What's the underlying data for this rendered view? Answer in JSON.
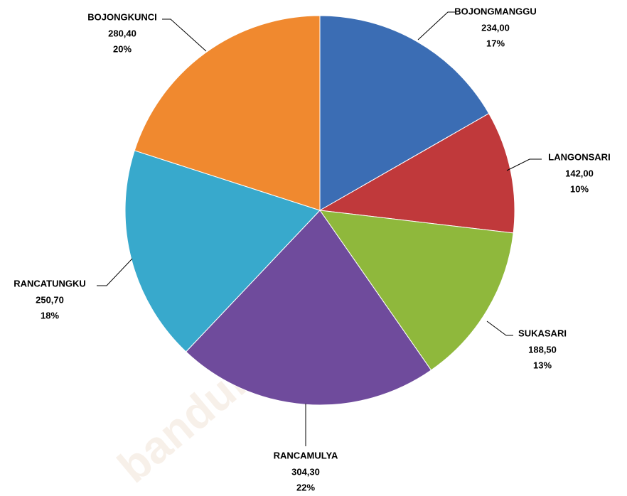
{
  "chart_data": {
    "type": "pie",
    "categories": [
      "BOJONGMANGGU",
      "LANGONSARI",
      "SUKASARI",
      "RANCAMULYA",
      "RANCATUNGKU",
      "BOJONGKUNCI"
    ],
    "values": [
      234.0,
      142.0,
      188.5,
      304.3,
      250.7,
      280.4
    ],
    "value_labels": [
      "234,00",
      "142,00",
      "188,50",
      "304,30",
      "250,70",
      "280,40"
    ],
    "percent_labels": [
      "17%",
      "10%",
      "13%",
      "22%",
      "18%",
      "20%"
    ],
    "colors": [
      "#3b6db4",
      "#c0393b",
      "#8fb83c",
      "#6f4b9c",
      "#38a9cc",
      "#f0892f"
    ],
    "watermark": "bandungkab.bps.go.id"
  }
}
